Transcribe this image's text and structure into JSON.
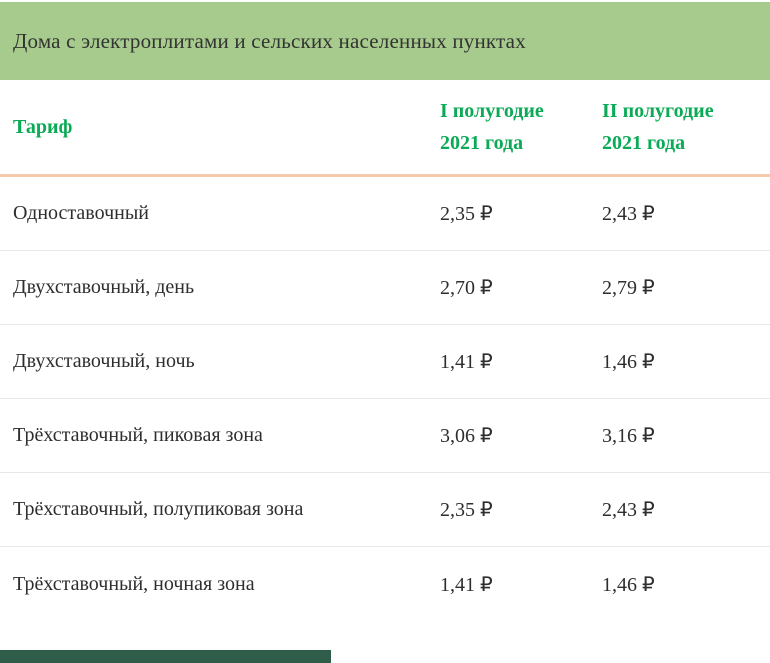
{
  "title_bar": {
    "title": "Дома с электроплитами и сельских населенных пунктах"
  },
  "table": {
    "header": {
      "tariff_label": "Тариф",
      "first_half_col": {
        "line1": "I полугодие",
        "line2": "2021 года"
      },
      "second_half_col": {
        "line1": "II полугодие",
        "line2": "2021 года"
      }
    },
    "rows": [
      {
        "tariff": "Одноставочный",
        "first_half": "2,35 ₽",
        "second_half": "2,43 ₽"
      },
      {
        "tariff": "Двухставочный, день",
        "first_half": "2,70 ₽",
        "second_half": "2,79 ₽"
      },
      {
        "tariff": "Двухставочный, ночь",
        "first_half": "1,41 ₽",
        "second_half": "1,46 ₽"
      },
      {
        "tariff": "Трёхставочный, пиковая зона",
        "first_half": "3,06 ₽",
        "second_half": "3,16 ₽"
      },
      {
        "tariff": "Трёхставочный, полупиковая зона",
        "first_half": "2,35 ₽",
        "second_half": "2,43 ₽"
      },
      {
        "tariff": "Трёхставочный, ночная зона",
        "first_half": "1,41 ₽",
        "second_half": "1,46 ₽"
      }
    ]
  },
  "colors": {
    "title_bar_bg": "#a6cb8c",
    "title_text": "#333333",
    "header_text_green": "#0baa56",
    "header_underline_peach": "#f6c9ab",
    "row_divider": "#e8e8e8",
    "body_text": "#2e2e2e",
    "bottom_bar_dark_green": "#2f5d49"
  }
}
